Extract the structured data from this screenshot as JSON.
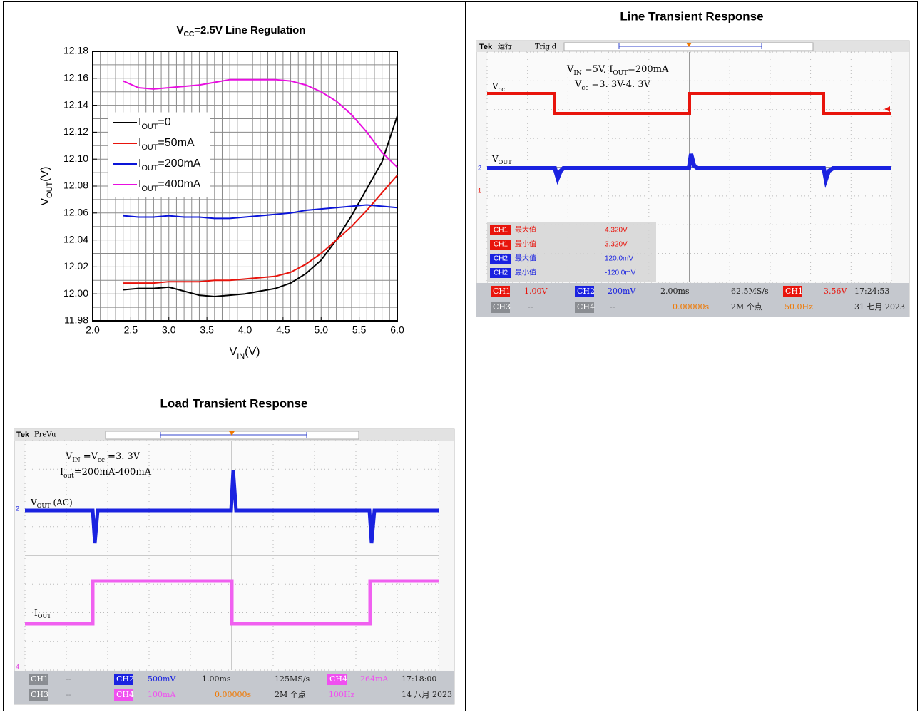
{
  "chart_data": {
    "type": "line",
    "title": [
      "V",
      "CC",
      "=2.5V  Line Regulation"
    ],
    "xlabel": [
      "V",
      "IN",
      "(V)"
    ],
    "ylabel": [
      "V",
      "OUT",
      "(V)"
    ],
    "x": [
      2.4,
      2.6,
      2.8,
      3.0,
      3.2,
      3.4,
      3.6,
      3.8,
      4.0,
      4.2,
      4.4,
      4.6,
      4.8,
      5.0,
      5.2,
      5.4,
      5.6,
      5.8,
      6.0
    ],
    "series": [
      {
        "name": [
          "I",
          "OUT",
          "=0"
        ],
        "color": "#000000",
        "values": [
          12.003,
          12.004,
          12.004,
          12.005,
          12.002,
          11.999,
          11.998,
          11.999,
          12.0,
          12.002,
          12.004,
          12.008,
          12.015,
          12.025,
          12.04,
          12.058,
          12.078,
          12.098,
          12.132
        ]
      },
      {
        "name": [
          "I",
          "OUT",
          "=50mA"
        ],
        "color": "#e8140c",
        "values": [
          12.008,
          12.008,
          12.008,
          12.009,
          12.009,
          12.009,
          12.01,
          12.01,
          12.011,
          12.012,
          12.013,
          12.016,
          12.022,
          12.03,
          12.04,
          12.05,
          12.062,
          12.075,
          12.088
        ]
      },
      {
        "name": [
          "I",
          "OUT",
          "=200mA"
        ],
        "color": "#0a14d8",
        "values": [
          12.058,
          12.057,
          12.057,
          12.058,
          12.057,
          12.057,
          12.056,
          12.056,
          12.057,
          12.058,
          12.059,
          12.06,
          12.062,
          12.063,
          12.064,
          12.065,
          12.066,
          12.065,
          12.064
        ]
      },
      {
        "name": [
          "I",
          "OUT",
          "=400mA"
        ],
        "color": "#e80ee0",
        "values": [
          12.158,
          12.153,
          12.152,
          12.153,
          12.154,
          12.155,
          12.157,
          12.159,
          12.159,
          12.159,
          12.159,
          12.158,
          12.155,
          12.15,
          12.143,
          12.133,
          12.12,
          12.105,
          12.094
        ]
      }
    ],
    "xlim": [
      2,
      6
    ],
    "ylim": [
      11.98,
      12.18
    ],
    "xticks": [
      {
        "value": 2,
        "label": "2.0"
      },
      2.5,
      {
        "value": 3,
        "label": "3.0"
      },
      3.5,
      {
        "value": 4,
        "label": "4.0"
      },
      4.5,
      {
        "value": 5,
        "label": "5.0"
      },
      5.5,
      {
        "value": 6,
        "label": "6.0"
      }
    ],
    "yticks": [
      11.98,
      {
        "value": 12,
        "label": "12.00"
      },
      12.02,
      12.04,
      12.06,
      12.08,
      {
        "value": 12.1,
        "label": "12.10"
      },
      12.12,
      12.14,
      12.16,
      12.18
    ],
    "grid": true,
    "legend": "upper left"
  },
  "line_transient": {
    "title": "Line Transient Response",
    "brand": "Tek",
    "mode": "运行",
    "trigger": "Trig'd",
    "notes": [
      [
        "V",
        "IN",
        " =5V, I",
        "OUT",
        "=200mA"
      ],
      [
        "V",
        "cc",
        " =3. 3V-4. 3V"
      ]
    ],
    "trace_labels": [
      [
        "V",
        "cc"
      ],
      [
        "V",
        "OUT"
      ]
    ],
    "markers": [
      "2",
      "1"
    ],
    "measurements": [
      [
        "CH1",
        "最大值",
        "4.320V"
      ],
      [
        "CH1",
        "最小值",
        "3.320V"
      ],
      [
        "CH2",
        "最大值",
        "120.0mV"
      ],
      [
        "CH2",
        "最小值",
        "-120.0mV"
      ]
    ],
    "status": [
      [
        "CH1",
        "1.00V",
        "CH2",
        "200mV",
        "2.00ms",
        "62.5MS/s",
        "CH1",
        "3.56V",
        "17:24:53"
      ],
      [
        "CH3",
        "--",
        "CH4",
        "--",
        "0.00000s",
        "2M 个点",
        "50.0Hz",
        "31 七月 2023"
      ]
    ]
  },
  "load_transient": {
    "title": "Load Transient Response",
    "brand": "Tek",
    "mode": "PreVu",
    "notes": [
      [
        "V",
        "IN",
        " =V",
        "cc",
        " =3. 3V"
      ],
      [
        "I",
        "out",
        "=200mA-400mA"
      ]
    ],
    "trace_labels": [
      [
        "V",
        "OUT",
        " (AC)"
      ],
      [
        "I",
        "OUT"
      ]
    ],
    "markers": [
      "2",
      "4"
    ],
    "status": [
      [
        "CH1",
        "--",
        "CH2",
        "500mV",
        "1.00ms",
        "125MS/s",
        "CH4",
        "264mA",
        "17:18:00"
      ],
      [
        "CH3",
        "--",
        "CH4",
        "100mA",
        "0.00000s",
        "2M 个点",
        "100Hz",
        "14 八月 2023"
      ]
    ]
  }
}
